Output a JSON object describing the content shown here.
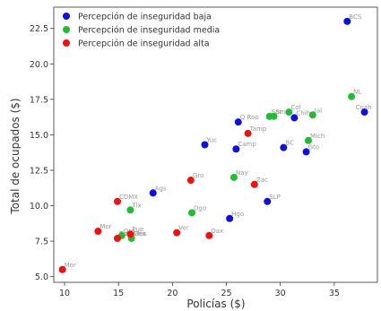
{
  "chart_data": {
    "type": "scatter",
    "title": "",
    "xlabel": "Policías ($)",
    "ylabel": "Total de ocupados ($)",
    "xlim": [
      9.0,
      39.0
    ],
    "ylim": [
      4.6,
      24.0
    ],
    "x_ticks": [
      "10",
      "15",
      "20",
      "25",
      "30",
      "35"
    ],
    "y_ticks": [
      "5.0",
      "7.5",
      "10.0",
      "12.5",
      "15.0",
      "17.5",
      "20.0",
      "22.5"
    ],
    "grid": false,
    "legend_position": "top-left",
    "series": [
      {
        "name": "Percepción de inseguridad baja",
        "color": "#1010dd",
        "points": [
          {
            "label": "BCS",
            "x": 36.2,
            "y": 23.0
          },
          {
            "label": "Coah",
            "x": 37.8,
            "y": 16.6
          },
          {
            "label": "Chih",
            "x": 31.3,
            "y": 16.2
          },
          {
            "label": "Q Roo",
            "x": 26.1,
            "y": 15.9
          },
          {
            "label": "Yuc",
            "x": 23.0,
            "y": 14.3
          },
          {
            "label": "Camp",
            "x": 25.9,
            "y": 14.0
          },
          {
            "label": "BC",
            "x": 30.3,
            "y": 14.1
          },
          {
            "label": "Gto",
            "x": 32.4,
            "y": 13.8
          },
          {
            "label": "Ags",
            "x": 18.2,
            "y": 10.9
          },
          {
            "label": "SLP",
            "x": 28.8,
            "y": 10.3
          },
          {
            "label": "Hgo",
            "x": 25.3,
            "y": 9.1
          }
        ]
      },
      {
        "name": "Percepción de inseguridad media",
        "color": "#22bb33",
        "points": [
          {
            "label": "NL",
            "x": 36.6,
            "y": 17.7
          },
          {
            "label": "Son",
            "x": 29.0,
            "y": 16.3
          },
          {
            "label": "Sin",
            "x": 29.4,
            "y": 16.3
          },
          {
            "label": "Col",
            "x": 30.8,
            "y": 16.6
          },
          {
            "label": "Jal",
            "x": 33.0,
            "y": 16.4
          },
          {
            "label": "Mich",
            "x": 32.6,
            "y": 14.6
          },
          {
            "label": "Nay",
            "x": 25.7,
            "y": 12.0
          },
          {
            "label": "Tlx",
            "x": 16.1,
            "y": 9.7
          },
          {
            "label": "Dgo",
            "x": 21.8,
            "y": 9.5
          },
          {
            "label": "Qro",
            "x": 15.3,
            "y": 7.9
          },
          {
            "label": "Chis",
            "x": 16.2,
            "y": 7.7
          }
        ]
      },
      {
        "name": "Percepción de inseguridad alta",
        "color": "#ee1111",
        "points": [
          {
            "label": "Tamp",
            "x": 27.0,
            "y": 15.1
          },
          {
            "label": "Zac",
            "x": 27.6,
            "y": 11.5
          },
          {
            "label": "Gro",
            "x": 21.7,
            "y": 11.8
          },
          {
            "label": "CDMX",
            "x": 14.9,
            "y": 10.3
          },
          {
            "label": "Mor",
            "x": 13.1,
            "y": 8.2
          },
          {
            "label": "Pue",
            "x": 16.1,
            "y": 8.0
          },
          {
            "label": "Edo Méx",
            "x": 14.9,
            "y": 7.7
          },
          {
            "label": "Ver",
            "x": 20.4,
            "y": 8.1
          },
          {
            "label": "Oax",
            "x": 23.4,
            "y": 7.9
          },
          {
            "label": "Mor",
            "x": 9.8,
            "y": 5.5
          }
        ]
      }
    ]
  }
}
